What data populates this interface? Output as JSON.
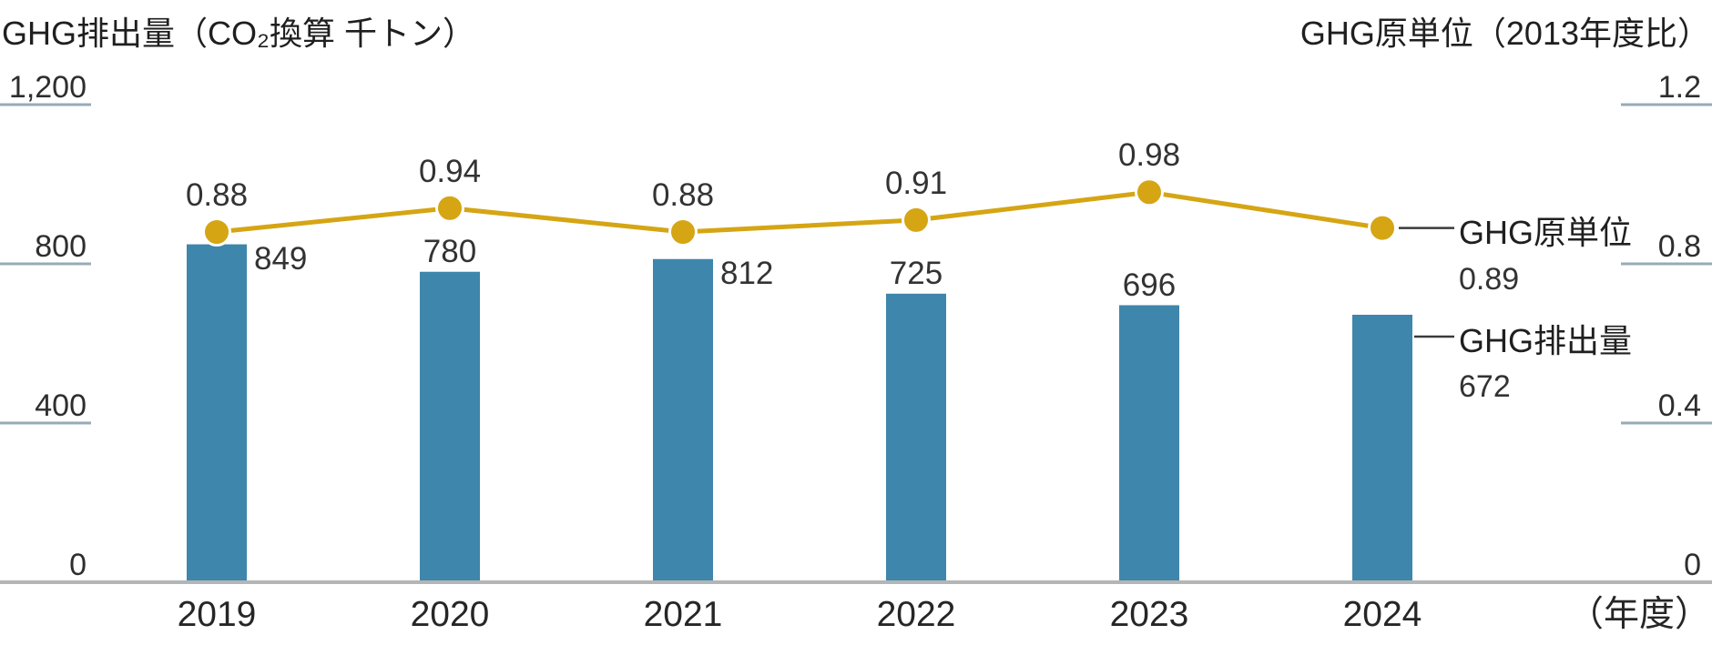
{
  "chart_data": {
    "type": "combo",
    "categories": [
      "2019",
      "2020",
      "2021",
      "2022",
      "2023",
      "2024"
    ],
    "x_axis_unit": "（年度）",
    "series": [
      {
        "name": "GHG排出量",
        "type": "bar",
        "axis": "left",
        "values": [
          849,
          780,
          812,
          725,
          696,
          672
        ],
        "labels": [
          "849",
          "780",
          "812",
          "725",
          "696",
          "672"
        ],
        "label_pos": [
          "right",
          "above",
          "right",
          "above",
          "above",
          "legend"
        ],
        "color": "#3e86ab"
      },
      {
        "name": "GHG原単位",
        "type": "line",
        "axis": "right",
        "values": [
          0.88,
          0.94,
          0.88,
          0.91,
          0.98,
          0.89
        ],
        "labels": [
          "0.88",
          "0.94",
          "0.88",
          "0.91",
          "0.98",
          "0.89"
        ],
        "label_pos": [
          "above",
          "above",
          "above",
          "above",
          "above",
          "legend"
        ],
        "color": "#d5a514",
        "marker_fill": "#d5a514",
        "marker_stroke": "#ffffff"
      }
    ],
    "left_axis": {
      "title": "GHG排出量（CO₂換算 千トン）",
      "tick_labels": [
        "0",
        "400",
        "800",
        "1,200"
      ],
      "tick_values": [
        0,
        400,
        800,
        1200
      ],
      "range": [
        0,
        1200
      ]
    },
    "right_axis": {
      "title": "GHG原単位（2013年度比）",
      "tick_labels": [
        "0",
        "0.4",
        "0.8",
        "1.2"
      ],
      "tick_values": [
        0,
        0.4,
        0.8,
        1.2
      ],
      "range": [
        0,
        1.2
      ]
    },
    "legend": {
      "line": {
        "label": "GHG原単位",
        "value": "0.89"
      },
      "bar": {
        "label": "GHG排出量",
        "value": "672"
      }
    },
    "grid": "tick-stubs-only",
    "legend_position": "right-of-last-points",
    "colors": {
      "axis_line": "#b3b5b7",
      "tick_stub": "#97abb6",
      "text": "#2e2e2e",
      "connector": "#3a3a3a"
    }
  }
}
